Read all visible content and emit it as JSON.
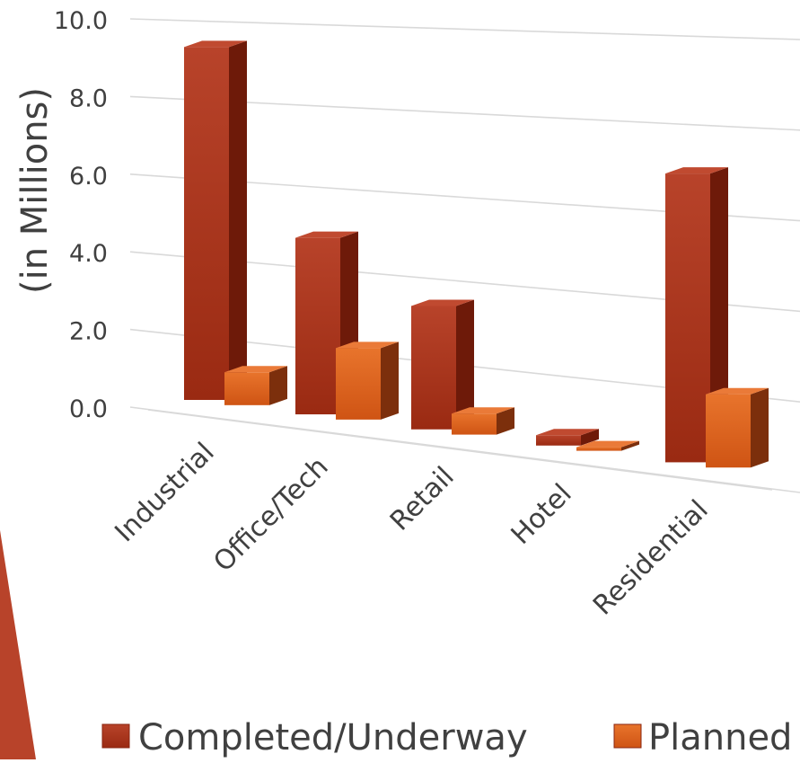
{
  "chart_data": {
    "type": "bar",
    "title": "",
    "xlabel": "",
    "ylabel": "(in Millions)",
    "ylim": [
      0,
      10
    ],
    "y_ticks": [
      "0.0",
      "2.0",
      "4.0",
      "6.0",
      "8.0",
      "10.0"
    ],
    "categories": [
      "Industrial",
      "Office/Tech",
      "Retail",
      "Hotel",
      "Residential"
    ],
    "series": [
      {
        "name": "Completed/Underway",
        "values": [
          9.6,
          4.9,
          3.5,
          0.3,
          8.6
        ]
      },
      {
        "name": "Planned",
        "values": [
          0.9,
          2.0,
          0.6,
          0.1,
          2.2
        ]
      }
    ],
    "legend_position": "bottom",
    "grid": true,
    "colors": {
      "completed": "#a8321c",
      "planned": "#e2661f",
      "grid": "#d9d9d9",
      "text": "#404040",
      "accent": "#b8432a"
    }
  }
}
